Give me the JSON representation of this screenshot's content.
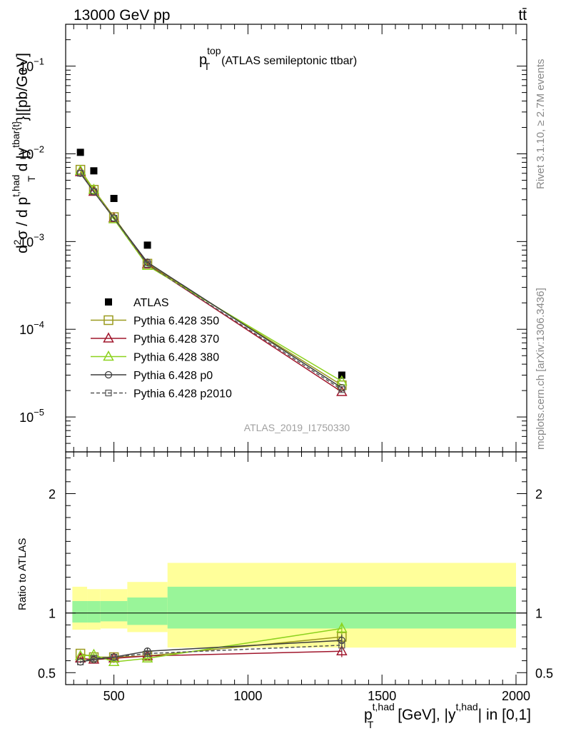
{
  "header": {
    "left": "13000 GeV pp",
    "right": "tt̄"
  },
  "side_text": {
    "rivet": "Rivet 3.1.10, ≥ 2.7M events",
    "mcplots": "mcplots.cern.ch [arXiv:1306.3436]"
  },
  "plot_title": {
    "main": "p",
    "sup": "top",
    "sub": "T",
    "note": "(ATLAS semileptonic ttbar)"
  },
  "watermark": "ATLAS_2019_I1750330",
  "ylabel_top": {
    "part1": "d",
    "sup1": "2",
    "part2": "σ  /  d p",
    "sup2": "t,had",
    "sub2": "T",
    "part3": " d |y",
    "sup3": "tbar{t}",
    "part4": "}|[pb/GeV]"
  },
  "ylabel_bottom": "Ratio to ATLAS",
  "xlabel": {
    "part1": "p",
    "sup1": "t,had",
    "sub1": "T",
    "part2": " [GeV], |y",
    "sup2": "t,had",
    "part3": "| in [0,1]"
  },
  "chart_data": {
    "type": "scatter",
    "x_ticks": [
      500,
      1000,
      1500,
      2000
    ],
    "x_tick_labels": [
      "500",
      "1000",
      "1500",
      "2000"
    ],
    "xlim": [
      320,
      2040
    ],
    "main": {
      "yscale": "log",
      "ylim": [
        4e-06,
        0.3
      ],
      "y_ticks": [
        1e-05,
        0.0001,
        0.001,
        0.01,
        0.1
      ],
      "y_tick_labels": [
        {
          "base": "10",
          "exp": "−5"
        },
        {
          "base": "10",
          "exp": "−4"
        },
        {
          "base": "10",
          "exp": "−3"
        },
        {
          "base": "10",
          "exp": "−2"
        },
        {
          "base": "10",
          "exp": "−1"
        }
      ]
    },
    "ratio": {
      "ylim": [
        0.4,
        2.35
      ],
      "y_ticks": [
        0.5,
        1,
        2
      ],
      "y_tick_labels": [
        "0.5",
        "1",
        "2"
      ],
      "bands": [
        {
          "x0": 345,
          "x1": 400,
          "yellow": [
            0.86,
            1.22
          ],
          "green": [
            0.92,
            1.1
          ]
        },
        {
          "x0": 400,
          "x1": 450,
          "yellow": [
            0.86,
            1.2
          ],
          "green": [
            0.92,
            1.1
          ]
        },
        {
          "x0": 450,
          "x1": 550,
          "yellow": [
            0.87,
            1.2
          ],
          "green": [
            0.93,
            1.1
          ]
        },
        {
          "x0": 550,
          "x1": 700,
          "yellow": [
            0.84,
            1.26
          ],
          "green": [
            0.9,
            1.13
          ]
        },
        {
          "x0": 700,
          "x1": 2000,
          "yellow": [
            0.71,
            1.42
          ],
          "green": [
            0.87,
            1.22
          ]
        }
      ]
    },
    "series": [
      {
        "name": "ATLAS",
        "marker": "square-filled",
        "color": "#000000",
        "dash": "",
        "x": [
          375,
          425,
          500,
          625,
          1350
        ],
        "y": [
          0.0104,
          0.0064,
          0.0031,
          0.00091,
          3e-05
        ],
        "ratio": [
          1,
          1,
          1,
          1,
          1
        ],
        "ratio_err": [
          0,
          0,
          0,
          0,
          0
        ]
      },
      {
        "name": "Pythia 6.428 350",
        "marker": "square-open",
        "color": "#9a9a1e",
        "dash": "",
        "x": [
          375,
          425,
          500,
          625,
          1350
        ],
        "y": [
          0.0066,
          0.0039,
          0.0019,
          0.00056,
          2.3e-05
        ],
        "ratio": [
          0.66,
          0.63,
          0.63,
          0.64,
          0.8
        ],
        "ratio_err": [
          0.01,
          0.01,
          0.01,
          0.02,
          0.05
        ]
      },
      {
        "name": "Pythia 6.428 370",
        "marker": "triangle-open",
        "color": "#a0162c",
        "dash": "",
        "x": [
          375,
          425,
          500,
          625,
          1350
        ],
        "y": [
          0.0062,
          0.0037,
          0.00185,
          0.00055,
          1.93e-05
        ],
        "ratio": [
          0.62,
          0.61,
          0.62,
          0.64,
          0.68
        ],
        "ratio_err": [
          0.01,
          0.01,
          0.01,
          0.02,
          0.05
        ]
      },
      {
        "name": "Pythia 6.428 380",
        "marker": "triangle-open",
        "color": "#8cd21e",
        "dash": "",
        "x": [
          375,
          425,
          500,
          625,
          1350
        ],
        "y": [
          0.0064,
          0.0039,
          0.0018,
          0.00053,
          2.55e-05
        ],
        "ratio": [
          0.64,
          0.65,
          0.59,
          0.62,
          0.87
        ],
        "ratio_err": [
          0.01,
          0.01,
          0.01,
          0.02,
          0.05
        ]
      },
      {
        "name": "Pythia 6.428 p0",
        "marker": "circle-open",
        "color": "#3c3c3c",
        "dash": "",
        "x": [
          375,
          425,
          500,
          625,
          1350
        ],
        "y": [
          0.006,
          0.0037,
          0.00185,
          0.00058,
          2.15e-05
        ],
        "ratio": [
          0.59,
          0.61,
          0.63,
          0.68,
          0.77
        ],
        "ratio_err": [
          0.01,
          0.01,
          0.01,
          0.03,
          0.05
        ]
      },
      {
        "name": "Pythia 6.428 p2010",
        "marker": "square-open-small",
        "color": "#555555",
        "dash": "5,3",
        "x": [
          375,
          425,
          500,
          625,
          1350
        ],
        "y": [
          0.006,
          0.0037,
          0.00185,
          0.00055,
          2.05e-05
        ],
        "ratio": [
          0.59,
          0.62,
          0.63,
          0.66,
          0.73
        ],
        "ratio_err": [
          0.01,
          0.01,
          0.01,
          0.02,
          0.05
        ]
      }
    ]
  }
}
